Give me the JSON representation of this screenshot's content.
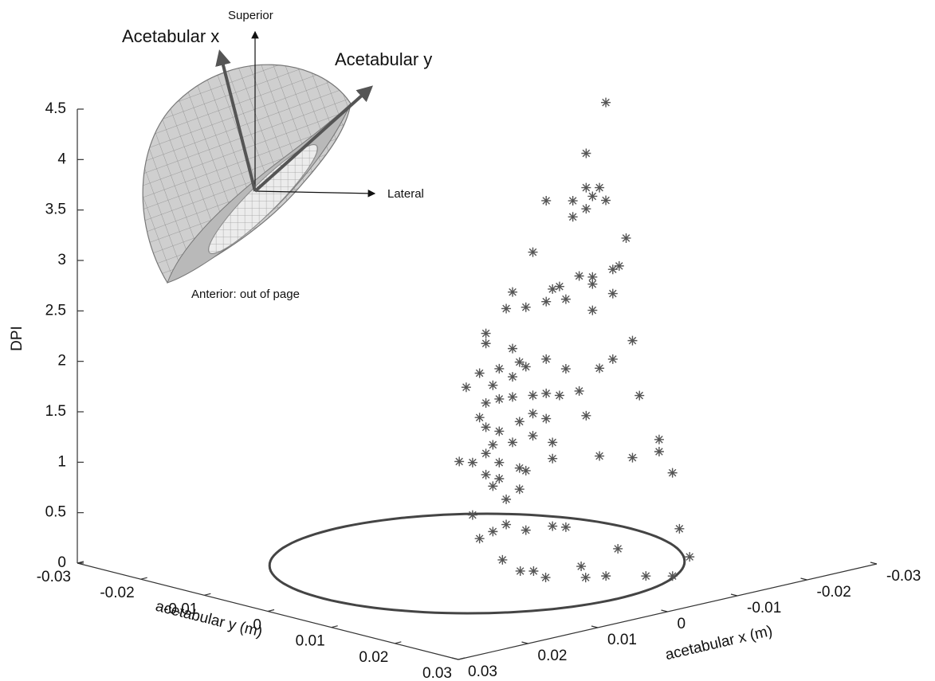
{
  "chart_data": {
    "type": "scatter3d",
    "xlabel": "acetabular x (m)",
    "ylabel": "acetabular y (m)",
    "zlabel": "DPI",
    "xlim": [
      -0.03,
      0.03
    ],
    "ylim": [
      -0.03,
      0.03
    ],
    "zlim": [
      0,
      4.5
    ],
    "xticks": [
      -0.03,
      -0.02,
      -0.01,
      0,
      0.01,
      0.02,
      0.03
    ],
    "yticks": [
      -0.03,
      -0.02,
      -0.01,
      0,
      0.01,
      0.02,
      0.03
    ],
    "zticks": [
      0,
      0.5,
      1,
      1.5,
      2,
      2.5,
      3,
      3.5,
      4,
      4.5
    ],
    "color": "#555555",
    "rim": {
      "radius": 0.022,
      "color": "#444444"
    },
    "annotations": [
      "Acetabular x",
      "Acetabular y",
      "Superior",
      "Lateral",
      "Anterior: out of page"
    ],
    "x": [
      -0.013,
      -0.012,
      -0.012,
      -0.013,
      -0.011,
      -0.009,
      -0.012,
      -0.012,
      -0.011,
      -0.013,
      -0.015,
      -0.008,
      -0.014,
      -0.014,
      -0.012,
      -0.011,
      -0.006,
      -0.009,
      -0.01,
      -0.012,
      -0.014,
      -0.007,
      -0.01,
      -0.009,
      -0.006,
      -0.012,
      -0.004,
      -0.004,
      -0.015,
      -0.014,
      -0.006,
      -0.007,
      -0.005,
      -0.007,
      -0.009,
      -0.013,
      -0.01,
      -0.011,
      -0.016,
      -0.003,
      -0.004,
      -0.005,
      -0.006,
      -0.004,
      -0.005,
      -0.006,
      -0.008,
      -0.009,
      -0.01,
      -0.012,
      -0.009,
      -0.004,
      -0.004,
      -0.005,
      -0.007,
      -0.008,
      -0.005,
      -0.006,
      -0.008,
      -0.009,
      -0.017,
      -0.017,
      -0.004,
      -0.002,
      -0.003,
      -0.005,
      -0.007,
      -0.009,
      -0.013,
      -0.015,
      -0.004,
      -0.005,
      -0.007,
      -0.018,
      -0.005,
      -0.007,
      -0.006,
      -0.003,
      -0.006,
      -0.004,
      -0.005,
      -0.007,
      -0.009,
      -0.01,
      -0.019,
      -0.012,
      -0.015,
      0,
      0.002,
      0.001,
      0.002,
      -0.004,
      -0.001,
      -0.003,
      -0.006,
      -0.008
    ],
    "y": [
      0.006,
      0.004,
      0.004,
      0.005,
      0.003,
      0.001,
      0.005,
      0.004,
      0.003,
      0.006,
      0.007,
      0,
      0.007,
      0.006,
      0.005,
      0.004,
      -0.001,
      0.002,
      0.002,
      0.005,
      0.006,
      0,
      0.003,
      0.001,
      -0.002,
      0.005,
      -0.003,
      -0.003,
      0.008,
      0.006,
      -0.001,
      -0.001,
      -0.002,
      0,
      0.001,
      0.005,
      0.003,
      0.004,
      0.008,
      -0.005,
      -0.004,
      -0.003,
      -0.001,
      -0.003,
      -0.002,
      -0.001,
      0,
      0.001,
      0.002,
      0.004,
      0.001,
      -0.004,
      -0.003,
      -0.002,
      -0.001,
      0,
      -0.003,
      -0.001,
      0,
      0.002,
      0.01,
      0.01,
      -0.003,
      -0.005,
      -0.004,
      -0.002,
      -0.001,
      0.002,
      0.005,
      0.008,
      -0.003,
      -0.002,
      0,
      0.011,
      -0.003,
      -0.001,
      -0.002,
      -0.004,
      -0.002,
      -0.004,
      -0.003,
      0,
      0.002,
      0.003,
      0.011,
      0.009,
      0.017,
      0.004,
      0.009,
      0.01,
      0.013,
      0.012,
      0.016,
      0.017,
      0.02,
      0.022
    ],
    "z": [
      4.46,
      3.94,
      3.6,
      3.6,
      3.47,
      3.47,
      3.53,
      3.39,
      3.31,
      3.49,
      3.1,
      2.96,
      2.84,
      2.79,
      2.73,
      2.74,
      2.58,
      2.61,
      2.62,
      2.66,
      2.55,
      2.43,
      2.51,
      2.47,
      2.4,
      2.4,
      2.17,
      2.07,
      2.1,
      1.9,
      2.02,
      1.87,
      1.82,
      1.84,
      1.9,
      1.81,
      1.82,
      1.6,
      1.54,
      1.62,
      1.76,
      1.64,
      1.74,
      1.48,
      1.52,
      1.54,
      1.54,
      1.56,
      1.54,
      1.34,
      1.31,
      1.32,
      1.24,
      1.2,
      1.28,
      1.36,
      1.05,
      1.09,
      1.14,
      1.09,
      1.12,
      1,
      0.98,
      0.9,
      0.89,
      0.89,
      0.82,
      0.93,
      0.94,
      0.94,
      0.77,
      0.73,
      0.81,
      0.79,
      0.64,
      0.61,
      0.51,
      0.37,
      0.26,
      0.12,
      0.19,
      0.22,
      0.26,
      0.25,
      0.22,
      0.1,
      0.1,
      0.1,
      0.1,
      0.1,
      0.1,
      0.1,
      0.1,
      0.1,
      0.1,
      0.1
    ]
  }
}
